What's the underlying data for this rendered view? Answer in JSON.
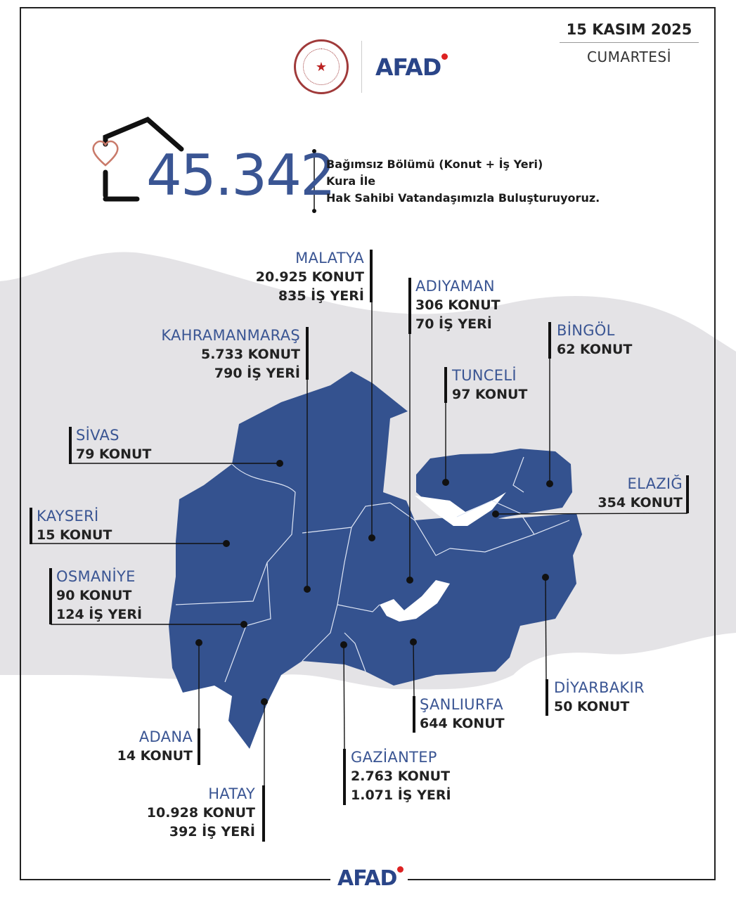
{
  "header": {
    "date": "15 KASIM 2025",
    "weekday": "CUMARTESİ",
    "logo_text": "AFAD",
    "seal": "T.C. İçişleri Bakanlığı"
  },
  "headline": {
    "total": "45.342",
    "lines": [
      "Bağımsız Bölümü (Konut + İş Yeri)",
      "Kura İle",
      "Hak Sahibi Vatandaşımızla Buluşturuyoruz."
    ]
  },
  "colors": {
    "region": "#34528f",
    "background_land": "#e4e3e6",
    "label": "#3a5593",
    "heart": "#c97a6a"
  },
  "provinces": [
    {
      "name": "MALATYA",
      "values": [
        "20.925 KONUT",
        "835 İŞ YERİ"
      ]
    },
    {
      "name": "ADIYAMAN",
      "values": [
        "306 KONUT",
        "70 İŞ YERİ"
      ]
    },
    {
      "name": "KAHRAMANMARAŞ",
      "values": [
        "5.733 KONUT",
        "790 İŞ YERİ"
      ]
    },
    {
      "name": "BİNGÖL",
      "values": [
        "62 KONUT"
      ]
    },
    {
      "name": "TUNCELİ",
      "values": [
        "97 KONUT"
      ]
    },
    {
      "name": "SİVAS",
      "values": [
        "79 KONUT"
      ]
    },
    {
      "name": "ELAZIĞ",
      "values": [
        "354 KONUT"
      ]
    },
    {
      "name": "KAYSERİ",
      "values": [
        "15 KONUT"
      ]
    },
    {
      "name": "OSMANİYE",
      "values": [
        "90 KONUT",
        "124 İŞ YERİ"
      ]
    },
    {
      "name": "DİYARBAKIR",
      "values": [
        "50 KONUT"
      ]
    },
    {
      "name": "ŞANLIURFA",
      "values": [
        "644 KONUT"
      ]
    },
    {
      "name": "ADANA",
      "values": [
        "14 KONUT"
      ]
    },
    {
      "name": "GAZİANTEP",
      "values": [
        "2.763 KONUT",
        "1.071 İŞ YERİ"
      ]
    },
    {
      "name": "HATAY",
      "values": [
        "10.928 KONUT",
        "392 İŞ YERİ"
      ]
    }
  ],
  "footer": {
    "logo_text": "AFAD"
  }
}
